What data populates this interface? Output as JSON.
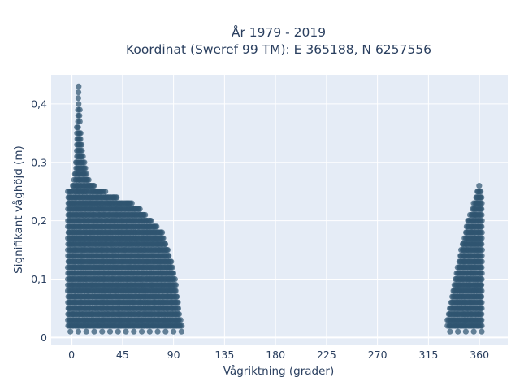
{
  "chart_data": {
    "type": "scatter",
    "title": "År 1979 - 2019",
    "subtitle": "Koordinat (Sweref 99 TM): E 365188, N 6257556",
    "xlabel": "Vågriktning (grader)",
    "ylabel": "Signifikant våghöjd (m)",
    "xlim": [
      -18,
      385
    ],
    "ylim": [
      -0.012,
      0.45
    ],
    "x_ticks": [
      0,
      45,
      90,
      135,
      180,
      225,
      270,
      315,
      360
    ],
    "x_tick_labels": [
      "0",
      "45",
      "90",
      "135",
      "180",
      "225",
      "270",
      "315",
      "360"
    ],
    "y_ticks": [
      0,
      0.1,
      0.2,
      0.3,
      0.4
    ],
    "y_tick_labels": [
      "0",
      "0,1",
      "0,2",
      "0,3",
      "0,4"
    ],
    "grid": true,
    "plot_background": "#e5ecf6",
    "marker_color": "#2f5570",
    "envelope": {
      "clusters": [
        {
          "name": "0-100",
          "x_min": -3,
          "x_max": 97,
          "bottom": 0.01,
          "upper": [
            [
              -2,
              0.25
            ],
            [
              0,
              0.26
            ],
            [
              2,
              0.27
            ],
            [
              4,
              0.3
            ],
            [
              6,
              0.43
            ],
            [
              8,
              0.35
            ],
            [
              10,
              0.31
            ],
            [
              12,
              0.29
            ],
            [
              15,
              0.27
            ],
            [
              20,
              0.26
            ],
            [
              30,
              0.25
            ],
            [
              40,
              0.24
            ],
            [
              50,
              0.235
            ],
            [
              60,
              0.22
            ],
            [
              65,
              0.21
            ],
            [
              70,
              0.2
            ],
            [
              75,
              0.19
            ],
            [
              80,
              0.18
            ],
            [
              85,
              0.15
            ],
            [
              88,
              0.13
            ],
            [
              90,
              0.11
            ],
            [
              92,
              0.09
            ],
            [
              94,
              0.06
            ],
            [
              96,
              0.03
            ],
            [
              97,
              0.02
            ]
          ]
        },
        {
          "name": "330-360",
          "x_min": 332,
          "x_max": 362,
          "bottom": 0.01,
          "upper": [
            [
              332,
              0.03
            ],
            [
              335,
              0.06
            ],
            [
              340,
              0.11
            ],
            [
              345,
              0.16
            ],
            [
              350,
              0.2
            ],
            [
              355,
              0.23
            ],
            [
              358,
              0.25
            ],
            [
              360,
              0.26
            ],
            [
              362,
              0.24
            ]
          ]
        }
      ]
    }
  }
}
